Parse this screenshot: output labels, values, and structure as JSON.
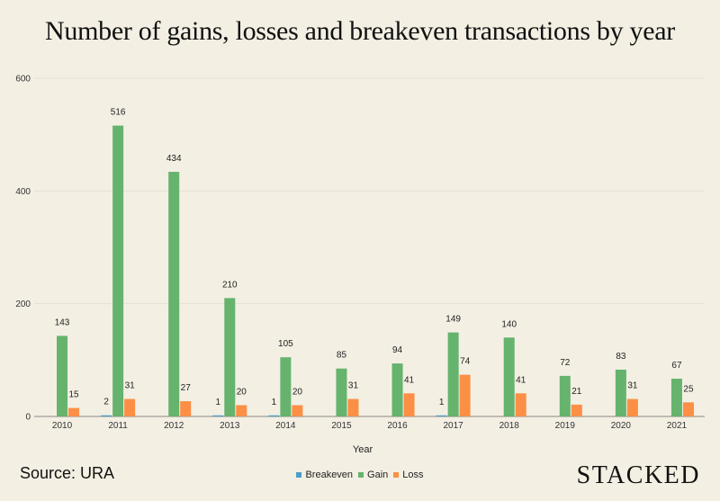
{
  "chart_data": {
    "type": "bar",
    "title": "Number of gains, losses and breakeven transactions by year",
    "xlabel": "Year",
    "ylabel": "",
    "ylim": [
      0,
      600
    ],
    "yticks": [
      0,
      200,
      400,
      600
    ],
    "grid": true,
    "legend_position": "bottom",
    "categories": [
      "2010",
      "2011",
      "2012",
      "2013",
      "2014",
      "2015",
      "2016",
      "2017",
      "2018",
      "2019",
      "2020",
      "2021"
    ],
    "series": [
      {
        "name": "Breakeven",
        "color": "#4a9fc7",
        "values": [
          null,
          2,
          null,
          1,
          1,
          null,
          null,
          1,
          null,
          null,
          null,
          null
        ]
      },
      {
        "name": "Gain",
        "color": "#66b36e",
        "values": [
          143,
          516,
          434,
          210,
          105,
          85,
          94,
          149,
          140,
          72,
          83,
          67
        ]
      },
      {
        "name": "Loss",
        "color": "#fb8f46",
        "values": [
          15,
          31,
          27,
          20,
          20,
          31,
          41,
          74,
          41,
          21,
          31,
          25
        ]
      }
    ]
  },
  "footer": {
    "source": "Source: URA",
    "brand": "STACKED"
  }
}
